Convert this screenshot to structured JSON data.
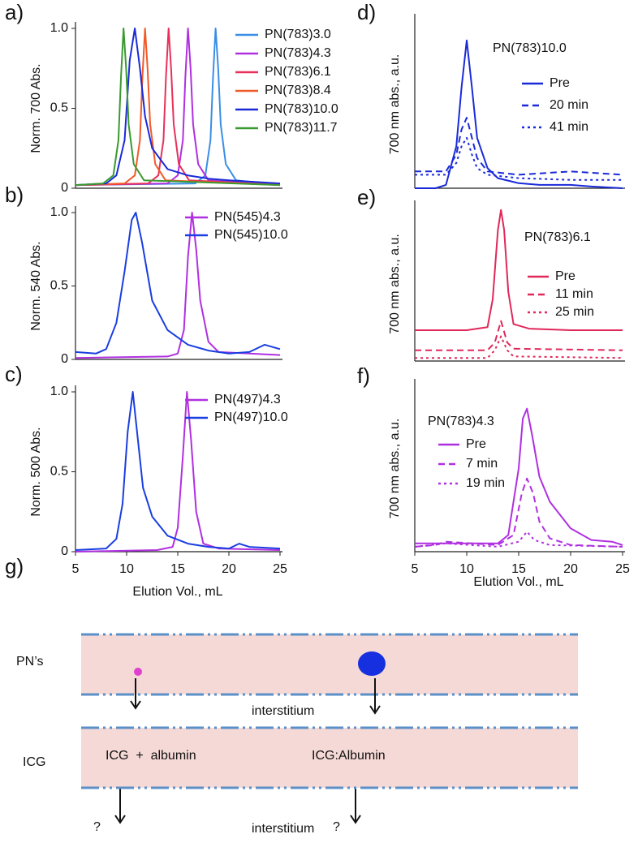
{
  "chart_data": [
    {
      "type": "line",
      "panel": "a)",
      "ylabel": "Norm. 700 Abs.",
      "xlim": [
        5,
        25
      ],
      "ylim": [
        0,
        1
      ],
      "yticks": [
        0,
        0.5,
        {
          "value": 1,
          "label": "1.0"
        }
      ],
      "series": [
        {
          "name": "PN(783)3.0",
          "color": "#3a8ee6",
          "dash": "solid",
          "x": [
            5,
            16.7,
            17.7,
            18.2,
            18.45,
            18.7,
            18.95,
            19.2,
            19.7,
            20.7,
            25
          ],
          "values": [
            0.02,
            0.03,
            0.08,
            0.3,
            0.7,
            1,
            0.75,
            0.4,
            0.15,
            0.05,
            0.02
          ]
        },
        {
          "name": "PN(783)4.3",
          "color": "#b030e0",
          "dash": "solid",
          "x": [
            5,
            14,
            15,
            15.5,
            15.75,
            16,
            16.25,
            16.5,
            17,
            18,
            25
          ],
          "values": [
            0.02,
            0.03,
            0.08,
            0.3,
            0.7,
            1,
            0.75,
            0.4,
            0.15,
            0.05,
            0.02
          ]
        },
        {
          "name": "PN(783)6.1",
          "color": "#e8305a",
          "dash": "solid",
          "x": [
            5,
            12.1,
            13.1,
            13.6,
            13.85,
            14.1,
            14.35,
            14.6,
            15.1,
            16.1,
            25
          ],
          "values": [
            0.02,
            0.03,
            0.08,
            0.3,
            0.7,
            1,
            0.75,
            0.4,
            0.15,
            0.05,
            0.02
          ]
        },
        {
          "name": "PN(783)8.4",
          "color": "#f05a28",
          "dash": "solid",
          "x": [
            5,
            9.8,
            10.8,
            11.3,
            11.55,
            11.8,
            12.05,
            12.3,
            12.8,
            13.8,
            25
          ],
          "values": [
            0.02,
            0.03,
            0.08,
            0.3,
            0.7,
            1,
            0.75,
            0.4,
            0.15,
            0.05,
            0.02
          ]
        },
        {
          "name": "PN(783)10.0",
          "color": "#1a2ad8",
          "dash": "solid",
          "x": [
            5,
            8,
            9,
            9.8,
            10.3,
            10.8,
            11.3,
            11.8,
            12.5,
            14,
            16,
            18,
            20,
            25
          ],
          "values": [
            0.02,
            0.03,
            0.08,
            0.3,
            0.8,
            1,
            0.75,
            0.45,
            0.25,
            0.12,
            0.08,
            0.06,
            0.05,
            0.03
          ]
        },
        {
          "name": "PN(783)11.7",
          "color": "#3a9a30",
          "dash": "solid",
          "x": [
            5,
            7.7,
            8.7,
            9.2,
            9.45,
            9.7,
            9.95,
            10.2,
            10.7,
            11.7,
            25
          ],
          "values": [
            0.02,
            0.03,
            0.08,
            0.3,
            0.7,
            1,
            0.75,
            0.4,
            0.15,
            0.05,
            0.02
          ]
        }
      ]
    },
    {
      "type": "line",
      "panel": "b)",
      "ylabel": "Norm. 540  Abs.",
      "xlim": [
        5,
        25
      ],
      "ylim": [
        0,
        1
      ],
      "yticks": [
        0,
        0.5,
        {
          "value": 1,
          "label": "1.0"
        }
      ],
      "series": [
        {
          "name": "PN(545)4.3",
          "color": "#b030e0",
          "dash": "solid",
          "x": [
            5,
            14,
            15,
            15.6,
            16,
            16.4,
            16.8,
            17.2,
            18,
            19,
            25
          ],
          "values": [
            0.01,
            0.02,
            0.04,
            0.2,
            0.7,
            1,
            0.75,
            0.4,
            0.12,
            0.05,
            0.03
          ]
        },
        {
          "name": "PN(545)10.0",
          "color": "#1a3ee0",
          "dash": "solid",
          "x": [
            5,
            7,
            8,
            9,
            9.8,
            10.5,
            10.9,
            11.5,
            12.5,
            14,
            16,
            18,
            20,
            22,
            23.5,
            25
          ],
          "values": [
            0.05,
            0.04,
            0.07,
            0.25,
            0.6,
            0.95,
            1,
            0.8,
            0.4,
            0.2,
            0.1,
            0.06,
            0.04,
            0.05,
            0.1,
            0.07
          ]
        }
      ]
    },
    {
      "type": "line",
      "panel": "c)",
      "ylabel": "Norm. 500 Abs.",
      "xlabel": "Elution Vol., mL",
      "xlim": [
        5,
        25
      ],
      "ylim": [
        0,
        1
      ],
      "yticks": [
        0,
        0.5,
        {
          "value": 1,
          "label": "1.0"
        }
      ],
      "xticks": [
        5,
        10,
        15,
        20,
        25
      ],
      "series": [
        {
          "name": "PN(497)4.3",
          "color": "#b030e0",
          "dash": "solid",
          "x": [
            5,
            13,
            14.5,
            15,
            15.5,
            15.9,
            16.3,
            16.8,
            17.5,
            19,
            25
          ],
          "values": [
            0,
            0.01,
            0.03,
            0.15,
            0.6,
            1,
            0.7,
            0.25,
            0.05,
            0.02,
            0.01
          ]
        },
        {
          "name": "PN(497)10.0",
          "color": "#1a3ee0",
          "dash": "solid",
          "x": [
            5,
            8,
            9,
            9.6,
            10.1,
            10.6,
            11.1,
            11.6,
            12.5,
            14,
            16,
            18,
            20,
            21,
            22,
            25
          ],
          "values": [
            0.01,
            0.02,
            0.08,
            0.3,
            0.75,
            1,
            0.7,
            0.4,
            0.22,
            0.1,
            0.05,
            0.03,
            0.02,
            0.05,
            0.03,
            0.02
          ]
        }
      ]
    },
    {
      "type": "line",
      "panel": "d)",
      "ylabel": "700 nm  abs., a.u.",
      "annotation": "PN(783)10.0",
      "xlim": [
        5,
        25
      ],
      "ylim": [
        0,
        1
      ],
      "series": [
        {
          "name": "Pre",
          "color": "#1a2ad8",
          "dash": "solid",
          "x": [
            5,
            7,
            8,
            9,
            9.5,
            10,
            10.5,
            11,
            12,
            13,
            15,
            17,
            20,
            22,
            25
          ],
          "values": [
            0,
            0,
            0.02,
            0.25,
            0.6,
            0.88,
            0.6,
            0.3,
            0.12,
            0.06,
            0.03,
            0.02,
            0.02,
            0.01,
            0
          ]
        },
        {
          "name": "20 min",
          "color": "#1a2ad8",
          "dash": "dashed",
          "x": [
            5,
            8,
            9,
            9.5,
            10,
            10.5,
            11,
            12,
            15,
            20,
            25
          ],
          "values": [
            0.1,
            0.1,
            0.2,
            0.35,
            0.42,
            0.3,
            0.18,
            0.1,
            0.08,
            0.1,
            0.08
          ]
        },
        {
          "name": "41 min",
          "color": "#1a2ad8",
          "dash": "dotted",
          "x": [
            5,
            8,
            9,
            9.5,
            10,
            10.5,
            11,
            12,
            15,
            20,
            25
          ],
          "values": [
            0.08,
            0.08,
            0.15,
            0.25,
            0.3,
            0.2,
            0.12,
            0.08,
            0.06,
            0.05,
            0.05
          ]
        }
      ]
    },
    {
      "type": "line",
      "panel": "e)",
      "ylabel": "700 nm  abs., a.u.",
      "annotation": "PN(783)6.1",
      "xlim": [
        5,
        25
      ],
      "ylim": [
        0,
        1
      ],
      "series": [
        {
          "name": "Pre",
          "color": "#e0285a",
          "dash": "solid",
          "x": [
            5,
            10,
            12,
            12.5,
            13,
            13.3,
            13.6,
            14,
            14.5,
            16,
            20,
            25
          ],
          "values": [
            0.2,
            0.2,
            0.22,
            0.4,
            0.85,
            0.98,
            0.85,
            0.45,
            0.24,
            0.21,
            0.2,
            0.2
          ]
        },
        {
          "name": "11 min",
          "color": "#e0285a",
          "dash": "dashed",
          "x": [
            5,
            12,
            12.7,
            13.3,
            13.9,
            14.5,
            25
          ],
          "values": [
            0.07,
            0.07,
            0.12,
            0.26,
            0.12,
            0.08,
            0.07
          ]
        },
        {
          "name": "25 min",
          "color": "#e0285a",
          "dash": "dotted",
          "x": [
            5,
            12,
            12.7,
            13.3,
            13.9,
            14.5,
            25
          ],
          "values": [
            0.02,
            0.02,
            0.07,
            0.16,
            0.07,
            0.03,
            0.02
          ]
        }
      ]
    },
    {
      "type": "line",
      "panel": "f)",
      "ylabel": "700 nm  abs., a.u.",
      "xlabel": "Elution Vol., mL",
      "annotation": "PN(783)4.3",
      "xlim": [
        5,
        25
      ],
      "ylim": [
        0,
        1
      ],
      "xticks": [
        5,
        10,
        15,
        20,
        25
      ],
      "series": [
        {
          "name": "Pre",
          "color": "#b030e0",
          "dash": "solid",
          "x": [
            5,
            10,
            13,
            14,
            15,
            15.4,
            15.8,
            16.3,
            17,
            18,
            19,
            20,
            22,
            24,
            25
          ],
          "values": [
            0.05,
            0.05,
            0.05,
            0.1,
            0.5,
            0.8,
            0.86,
            0.7,
            0.45,
            0.3,
            0.22,
            0.14,
            0.07,
            0.06,
            0.04
          ]
        },
        {
          "name": "7 min",
          "color": "#b030e0",
          "dash": "dashed",
          "x": [
            5,
            7,
            8,
            13,
            14.5,
            15.3,
            15.8,
            16.4,
            17,
            18,
            20,
            25
          ],
          "values": [
            0.03,
            0.04,
            0.06,
            0.04,
            0.1,
            0.35,
            0.44,
            0.35,
            0.18,
            0.08,
            0.04,
            0.03
          ]
        },
        {
          "name": "19 min",
          "color": "#b030e0",
          "dash": "dotted",
          "x": [
            5,
            8,
            13,
            15,
            15.8,
            16.5,
            18,
            25
          ],
          "values": [
            0.03,
            0.05,
            0.03,
            0.06,
            0.12,
            0.07,
            0.04,
            0.03
          ]
        }
      ]
    }
  ],
  "diagram": {
    "panel": "g)",
    "pn": {
      "label": "PN’s",
      "interstitium": "interstitium"
    },
    "icg": {
      "label": "ICG",
      "left": "ICG  +  albumin",
      "right": "ICG:Albumin",
      "interstitium": "interstitium",
      "questions": [
        "?",
        "?"
      ]
    }
  }
}
